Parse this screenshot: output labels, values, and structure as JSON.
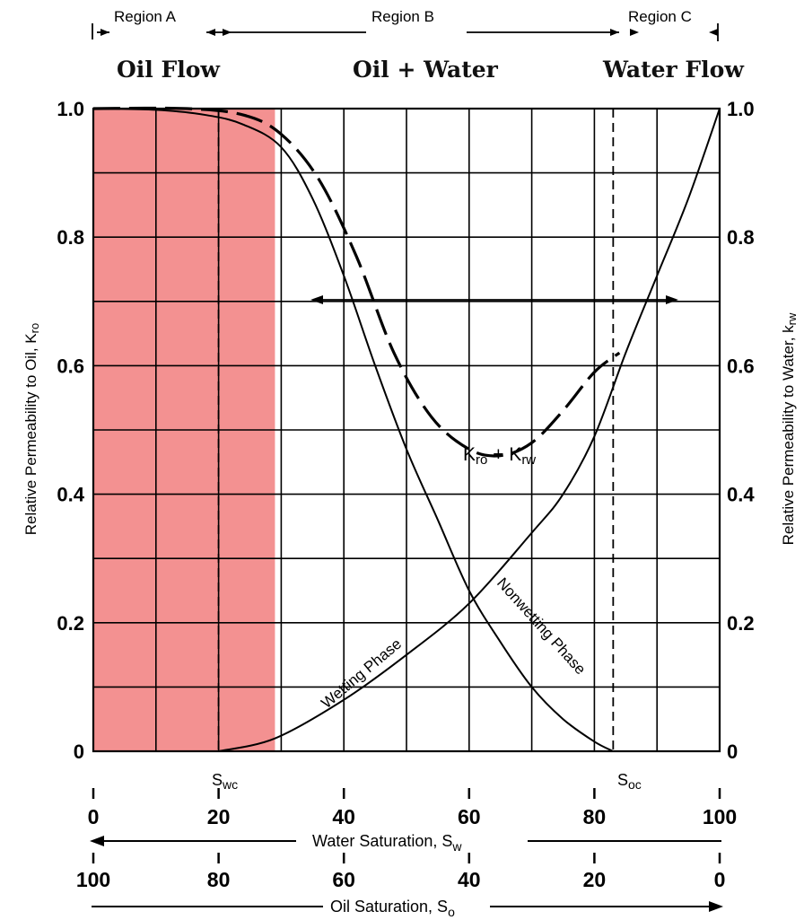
{
  "chart_data": {
    "type": "line",
    "regions": [
      {
        "name": "Region A",
        "flow_label": "Oil Flow"
      },
      {
        "name": "Region B",
        "flow_label": "Oil + Water"
      },
      {
        "name": "Region C",
        "flow_label": "Water Flow"
      }
    ],
    "ylabel_left": "Relative Permeability to Oil, K_ro",
    "ylabel_right": "Relative Permeability to Water, k_rw",
    "xlabel_bottom": "Water Saturation, S_w",
    "xlabel_bottom2": "Oil Saturation, S_o",
    "xlim": [
      0,
      100
    ],
    "ylim": [
      0,
      1.0
    ],
    "y_ticks": [
      "0",
      "0.2",
      "0.4",
      "0.6",
      "0.8",
      "1.0"
    ],
    "x_ticks_water": [
      "0",
      "20",
      "40",
      "60",
      "80",
      "100"
    ],
    "x_ticks_oil": [
      "100",
      "80",
      "60",
      "40",
      "20",
      "0"
    ],
    "grid": true,
    "highlight_band": {
      "x_range": [
        0,
        29
      ],
      "color": "#f28b8b"
    },
    "markers": [
      {
        "label": "S_wc",
        "x": 20
      },
      {
        "label": "S_oc",
        "x": 83
      }
    ],
    "series": [
      {
        "name": "Nonwetting Phase",
        "color": "#000000",
        "x": [
          0,
          10,
          18,
          24,
          30,
          35,
          40,
          45,
          50,
          55,
          60,
          65,
          70,
          75,
          80,
          83
        ],
        "y": [
          1.0,
          0.998,
          0.99,
          0.975,
          0.94,
          0.86,
          0.74,
          0.6,
          0.47,
          0.36,
          0.25,
          0.17,
          0.1,
          0.05,
          0.015,
          0
        ]
      },
      {
        "name": "Wetting Phase",
        "color": "#000000",
        "x": [
          20,
          29,
          40,
          50,
          60,
          70,
          75,
          80,
          85,
          90,
          95,
          100
        ],
        "y": [
          0,
          0.02,
          0.08,
          0.15,
          0.23,
          0.34,
          0.4,
          0.49,
          0.62,
          0.74,
          0.86,
          1.0
        ]
      },
      {
        "name": "K_ro + K_rw",
        "color": "#000000",
        "dashed": true,
        "x": [
          0,
          15,
          24,
          30,
          36,
          42,
          48,
          54,
          60,
          65,
          70,
          75,
          80,
          84
        ],
        "y": [
          1.0,
          1.0,
          0.99,
          0.96,
          0.89,
          0.77,
          0.62,
          0.52,
          0.47,
          0.46,
          0.48,
          0.53,
          0.59,
          0.62
        ]
      }
    ],
    "annotations": [
      {
        "text_main": "K",
        "text_sub": "ro",
        "text_mid": " + K",
        "text_sub2": "rw"
      }
    ]
  }
}
